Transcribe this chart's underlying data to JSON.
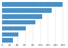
{
  "values": [
    160000,
    130000,
    105000,
    88000,
    62000,
    42000,
    28000
  ],
  "bar_color": "#4a90c4",
  "background_color": "#ffffff",
  "plot_bg_color": "#ffffff",
  "xlim": [
    0,
    170000
  ],
  "bar_height": 0.75,
  "grid_color": "#e0e0e0",
  "tick_label_size": 3.0,
  "x_ticks": [
    0,
    20000,
    40000,
    60000,
    80000,
    100000,
    120000,
    140000,
    160000
  ]
}
